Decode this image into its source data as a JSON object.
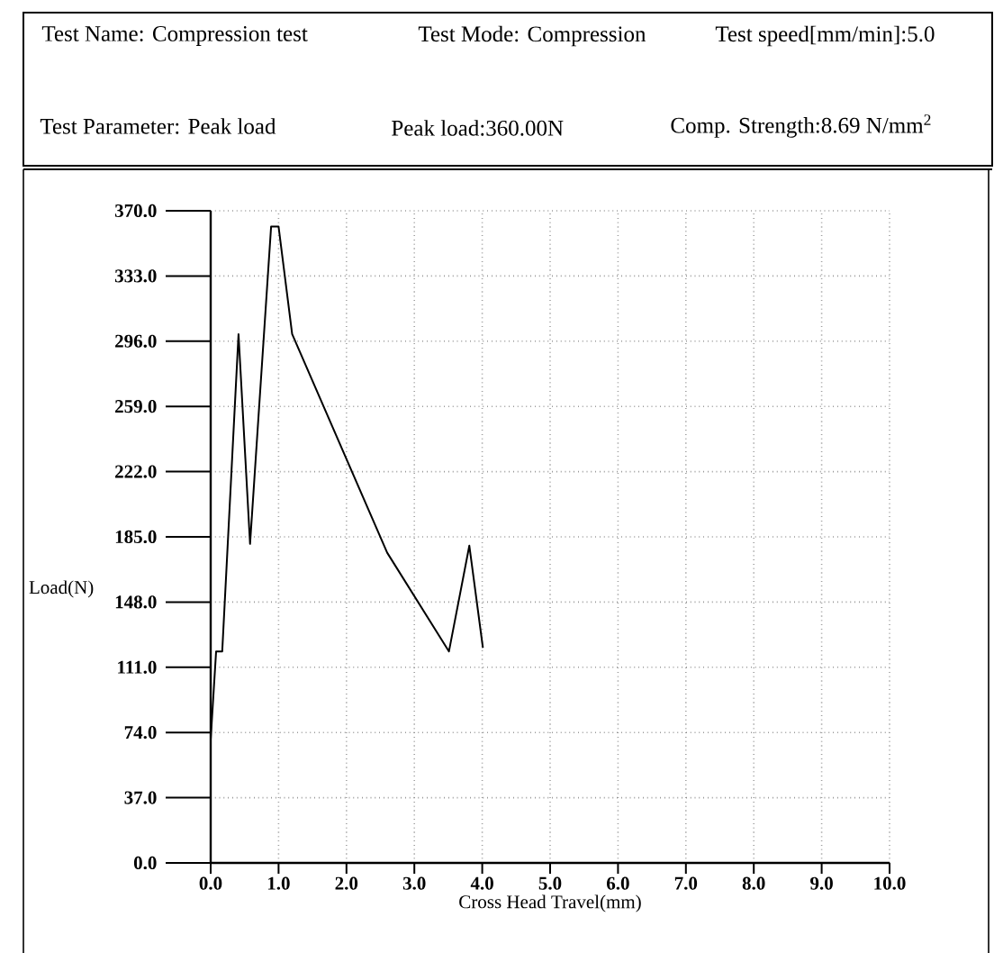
{
  "chart_data": {
    "type": "line",
    "annotations": [
      "Test Name: Compression test",
      "Test Mode: Compression",
      "Test speed[mm/min]:5.0",
      "Test Parameter: Peak load",
      "Peak load:360.00N",
      "Comp. Strength:8.69 N/mm$^{2}$"
    ],
    "xlabel": "Cross Head Travel(mm)",
    "ylabel": "Load(N)",
    "x": [
      0,
      0.08,
      0.17,
      0.41,
      0.58,
      0.89,
      1.0,
      1.2,
      2.6,
      3.51,
      3.81,
      4.01
    ],
    "series": [
      {
        "color": "#000000",
        "values": [
          70,
          120,
          120,
          300,
          181,
          361,
          361,
          300,
          176,
          120,
          180,
          122
        ]
      }
    ],
    "xlim": [
      0,
      10
    ],
    "ylim": [
      0,
      370
    ],
    "xticks": [
      {
        "value": 0,
        "label": "0.0"
      },
      {
        "value": 1,
        "label": "1.0"
      },
      {
        "value": 2,
        "label": "2.0"
      },
      {
        "value": 3,
        "label": "3.0"
      },
      {
        "value": 4,
        "label": "4.0"
      },
      {
        "value": 5,
        "label": "5.0"
      },
      {
        "value": 6,
        "label": "6.0"
      },
      {
        "value": 7,
        "label": "7.0"
      },
      {
        "value": 8,
        "label": "8.0"
      },
      {
        "value": 9,
        "label": "9.0"
      },
      {
        "value": 10,
        "label": "10.0"
      }
    ],
    "yticks": [
      {
        "value": 0,
        "label": "0.0"
      },
      {
        "value": 37,
        "label": "37.0"
      },
      {
        "value": 74,
        "label": "74.0"
      },
      {
        "value": 111,
        "label": "111.0"
      },
      {
        "value": 148,
        "label": "148.0"
      },
      {
        "value": 185,
        "label": "185.0"
      },
      {
        "value": 222,
        "label": "222.0"
      },
      {
        "value": 259,
        "label": "259.0"
      },
      {
        "value": 296,
        "label": "296.0"
      },
      {
        "value": 333,
        "label": "333.0"
      },
      {
        "value": 370,
        "label": "370.0"
      }
    ],
    "grid": true,
    "marker": "none",
    "line_style": "solid"
  }
}
